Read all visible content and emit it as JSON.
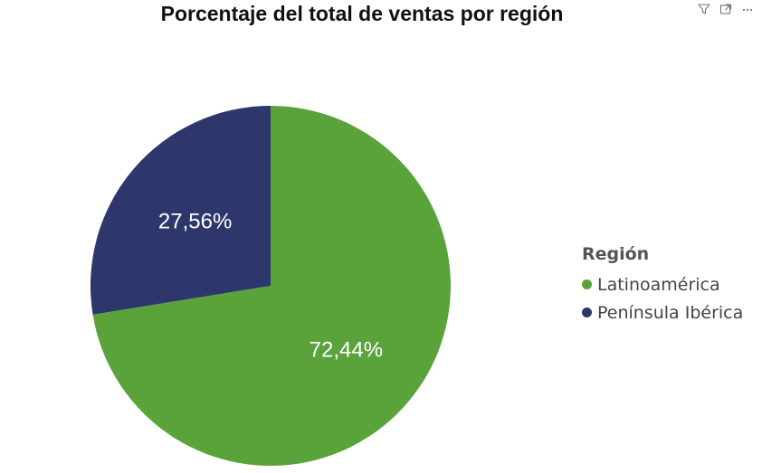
{
  "chart_data": {
    "type": "pie",
    "title": "Porcentaje del total de ventas por región",
    "legend_title": "Región",
    "legend_position": "right",
    "categories": [
      "Latinoamérica",
      "Península Ibérica"
    ],
    "values": [
      72.44,
      27.56
    ],
    "labels": [
      "72,44%",
      "27,56%"
    ],
    "colors": [
      "#5aa33b",
      "#2d376b"
    ]
  },
  "header_icons": [
    "filter-icon",
    "focus-mode-icon",
    "more-options-icon"
  ]
}
